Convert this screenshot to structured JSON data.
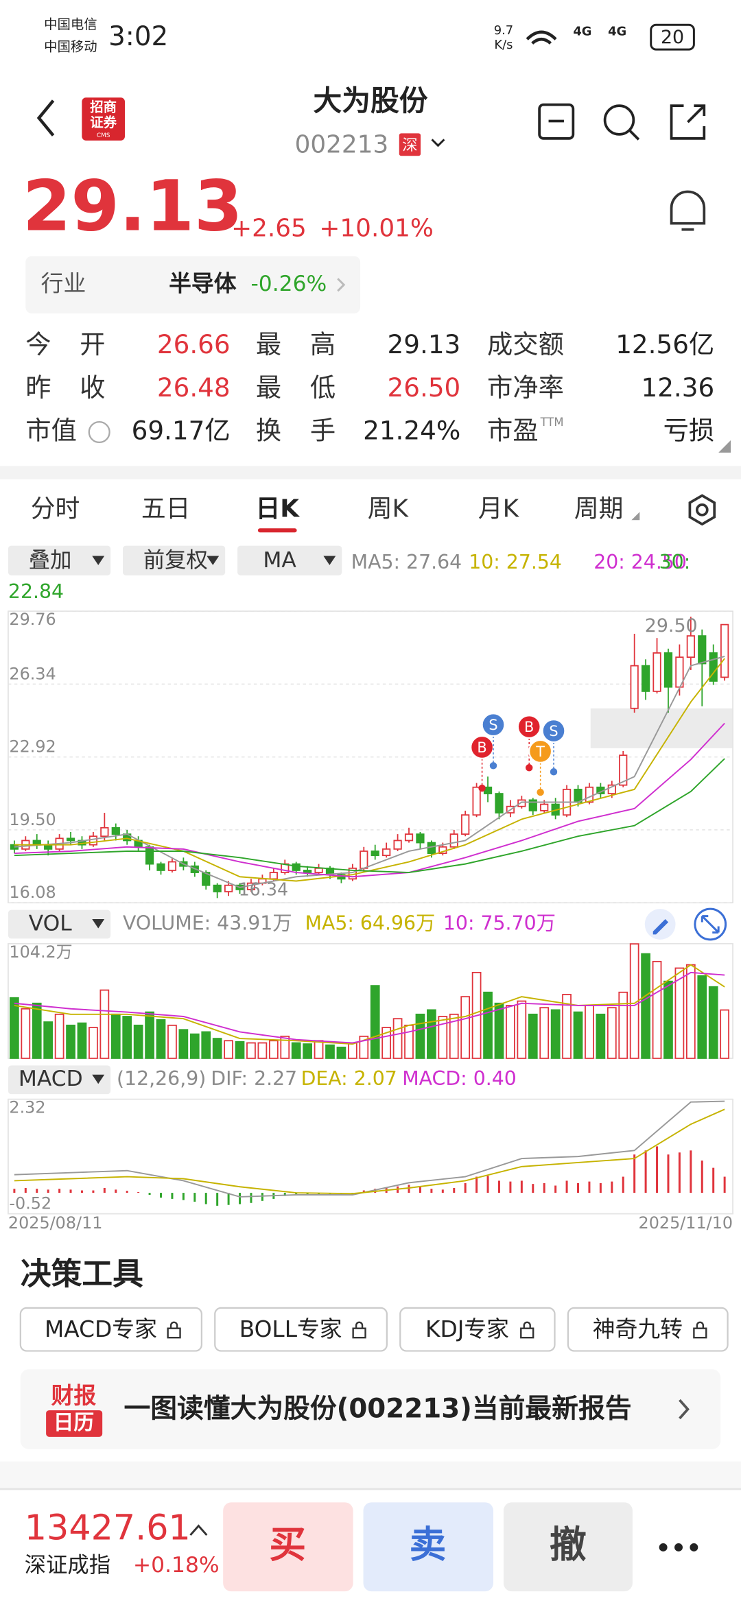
{
  "status": {
    "carrier1": "中国电信",
    "carrier2": "中国移动",
    "time": "3:02",
    "speed": "9.7",
    "speed_unit": "K/s",
    "network": "4G",
    "battery": "20"
  },
  "header": {
    "name": "大为股份",
    "code": "002213",
    "market": "深",
    "logo_top": "招商",
    "logo_bottom": "证券",
    "logo_small": "CMS"
  },
  "quote": {
    "price": "29.13",
    "change": "+2.65",
    "pct": "+10.01%"
  },
  "industry": {
    "label": "行业",
    "name": "半导体",
    "change": "-0.26%"
  },
  "stats": [
    [
      [
        "今 开",
        "26.66"
      ],
      [
        "最 高",
        "29.13"
      ],
      [
        "成交额",
        "12.56亿"
      ]
    ],
    [
      [
        "昨 收",
        "26.48"
      ],
      [
        "最 低",
        "26.50"
      ],
      [
        "市净率",
        "12.36"
      ]
    ],
    [
      [
        "市值",
        "69.17亿"
      ],
      [
        "换 手",
        "21.24%"
      ],
      [
        "市盈",
        "亏损"
      ]
    ]
  ],
  "pe_suffix": "TTM",
  "tabs": [
    "分时",
    "五日",
    "日K",
    "周K",
    "月K",
    "周期"
  ],
  "controls": [
    "叠加",
    "前复权",
    "MA"
  ],
  "ma_legend": [
    "MA5: 27.64",
    "10: 27.54",
    "20: 24.50",
    "30: 22.84"
  ],
  "kline": {
    "ylim": [
      16.08,
      29.76
    ],
    "yticks": [
      29.76,
      26.34,
      22.92,
      {
        "value": 19.5,
        "label": "19.50"
      },
      16.08
    ],
    "high_label": "29.50",
    "low_label": "16.34",
    "candles": [
      [
        18.8,
        18.6,
        19.0,
        18.4
      ],
      [
        18.6,
        19.0,
        19.2,
        18.5
      ],
      [
        19.0,
        18.8,
        19.3,
        18.6
      ],
      [
        18.8,
        18.6,
        19.0,
        18.3
      ],
      [
        18.6,
        19.1,
        19.3,
        18.5
      ],
      [
        19.1,
        19.0,
        19.4,
        18.8
      ],
      [
        19.0,
        18.8,
        19.2,
        18.6
      ],
      [
        18.8,
        19.2,
        19.4,
        18.7
      ],
      [
        19.2,
        19.6,
        20.3,
        19.0
      ],
      [
        19.6,
        19.3,
        19.8,
        19.0
      ],
      [
        19.3,
        19.0,
        19.5,
        18.8
      ],
      [
        19.0,
        18.7,
        19.2,
        18.5
      ],
      [
        18.7,
        17.9,
        18.8,
        17.6
      ],
      [
        17.9,
        17.6,
        18.0,
        17.4
      ],
      [
        17.6,
        18.0,
        18.2,
        17.5
      ],
      [
        18.0,
        17.8,
        18.2,
        17.6
      ],
      [
        17.8,
        17.5,
        18.0,
        17.3
      ],
      [
        17.5,
        16.9,
        17.6,
        16.7
      ],
      [
        16.9,
        16.6,
        17.0,
        16.3
      ],
      [
        16.6,
        16.9,
        17.1,
        16.4
      ],
      [
        16.9,
        16.7,
        17.0,
        16.5
      ],
      [
        16.7,
        17.0,
        17.2,
        16.6
      ],
      [
        17.0,
        17.2,
        17.4,
        16.9
      ],
      [
        17.2,
        17.5,
        17.7,
        17.1
      ],
      [
        17.5,
        17.9,
        18.1,
        17.4
      ],
      [
        17.9,
        17.6,
        18.0,
        17.4
      ],
      [
        17.6,
        17.5,
        17.8,
        17.3
      ],
      [
        17.5,
        17.7,
        17.9,
        17.4
      ],
      [
        17.7,
        17.4,
        17.8,
        17.2
      ],
      [
        17.4,
        17.2,
        17.5,
        17.0
      ],
      [
        17.2,
        17.7,
        17.9,
        17.1
      ],
      [
        17.7,
        18.5,
        18.7,
        17.6
      ],
      [
        18.5,
        18.3,
        18.8,
        18.1
      ],
      [
        18.3,
        18.6,
        18.9,
        18.2
      ],
      [
        18.6,
        19.0,
        19.3,
        18.5
      ],
      [
        19.0,
        19.3,
        19.6,
        18.9
      ],
      [
        19.3,
        18.9,
        19.4,
        18.6
      ],
      [
        18.9,
        18.4,
        19.0,
        18.2
      ],
      [
        18.4,
        18.7,
        18.9,
        18.3
      ],
      [
        18.7,
        19.3,
        19.5,
        18.6
      ],
      [
        19.3,
        20.2,
        20.4,
        19.2
      ],
      [
        20.2,
        21.5,
        21.7,
        20.1
      ],
      [
        21.5,
        21.2,
        22.0,
        20.8
      ],
      [
        21.2,
        20.3,
        21.3,
        20.0
      ],
      [
        20.3,
        20.6,
        20.9,
        20.1
      ],
      [
        20.6,
        20.9,
        21.1,
        20.5
      ],
      [
        20.9,
        20.4,
        21.0,
        20.2
      ],
      [
        20.4,
        20.7,
        20.9,
        20.3
      ],
      [
        20.7,
        20.2,
        21.0,
        20.0
      ],
      [
        20.2,
        21.4,
        21.6,
        20.1
      ],
      [
        21.4,
        20.8,
        21.6,
        20.6
      ],
      [
        20.8,
        21.5,
        21.7,
        20.7
      ],
      [
        21.5,
        21.2,
        21.7,
        21.0
      ],
      [
        21.2,
        21.6,
        21.8,
        21.0
      ],
      [
        21.6,
        23.0,
        23.2,
        21.5
      ],
      [
        25.2,
        27.2,
        28.7,
        25.0
      ],
      [
        27.2,
        26.0,
        27.5,
        25.6
      ],
      [
        26.0,
        27.8,
        28.5,
        25.9
      ],
      [
        27.8,
        26.2,
        28.0,
        25.0
      ],
      [
        26.2,
        27.6,
        28.2,
        25.8
      ],
      [
        27.6,
        28.6,
        29.5,
        27.0
      ],
      [
        28.6,
        27.3,
        28.9,
        25.3
      ],
      [
        27.8,
        26.48,
        28.2,
        26.3
      ],
      [
        26.66,
        29.13,
        29.13,
        26.5
      ]
    ],
    "line_x": [
      0,
      5,
      10,
      15,
      20,
      25,
      30,
      35,
      40,
      45,
      50,
      55,
      60,
      63
    ],
    "ma5": [
      18.7,
      18.9,
      19.3,
      17.9,
      16.8,
      17.3,
      17.5,
      18.5,
      19.0,
      20.8,
      20.8,
      22.0,
      27.2,
      27.64
    ],
    "ma10": [
      18.8,
      18.8,
      19.1,
      18.5,
      17.3,
      17.1,
      17.4,
      18.0,
      18.8,
      20.0,
      20.7,
      21.4,
      25.5,
      27.54
    ],
    "ma20": [
      18.4,
      18.5,
      18.7,
      18.6,
      18.0,
      17.5,
      17.3,
      17.5,
      18.2,
      19.0,
      19.9,
      20.5,
      22.8,
      24.5
    ],
    "ma30": [
      18.3,
      18.4,
      18.5,
      18.5,
      18.2,
      17.8,
      17.6,
      17.5,
      17.9,
      18.5,
      19.2,
      19.7,
      21.3,
      22.84
    ],
    "signals": [
      "B",
      "S",
      "B",
      "T",
      "S"
    ]
  },
  "volume": {
    "label": "VOL",
    "legend": [
      "VOLUME: 43.91万",
      "MA5: 64.96万",
      "10: 75.70万"
    ],
    "ylim": [
      0,
      104.2
    ],
    "yticks": [
      {
        "value": 104.2,
        "label": "104.2万"
      }
    ],
    "values": [
      55,
      45,
      50,
      33,
      40,
      30,
      32,
      28,
      62,
      40,
      38,
      30,
      42,
      35,
      30,
      26,
      22,
      24,
      18,
      16,
      15,
      14,
      14,
      16,
      20,
      14,
      13,
      16,
      12,
      10,
      14,
      20,
      66,
      28,
      36,
      30,
      40,
      44,
      38,
      40,
      56,
      78,
      60,
      50,
      48,
      52,
      40,
      46,
      44,
      58,
      42,
      48,
      40,
      46,
      60,
      104,
      95,
      88,
      70,
      82,
      85,
      75,
      65,
      43.91
    ],
    "ma5": [
      48,
      40,
      40,
      36,
      18,
      16,
      13,
      30,
      38,
      56,
      48,
      50,
      85,
      64.96
    ],
    "ma10": [
      50,
      45,
      42,
      38,
      24,
      17,
      14,
      24,
      36,
      50,
      48,
      48,
      78,
      75.7
    ]
  },
  "macd": {
    "label": "MACD",
    "legend": [
      "(12,26,9)",
      "DIF: 2.27",
      "DEA: 2.07",
      "MACD: 0.40"
    ],
    "ylim": [
      -0.52,
      2.32
    ],
    "yticks": [
      2.32,
      -0.52
    ],
    "hist": [
      0.1,
      0.12,
      0.1,
      0.08,
      0.1,
      0.08,
      0.06,
      0.06,
      0.12,
      0.08,
      0.05,
      0.02,
      -0.05,
      -0.12,
      -0.15,
      -0.18,
      -0.22,
      -0.28,
      -0.32,
      -0.3,
      -0.28,
      -0.25,
      -0.2,
      -0.15,
      -0.08,
      -0.06,
      -0.05,
      -0.04,
      -0.05,
      -0.06,
      -0.02,
      0.06,
      0.1,
      0.12,
      0.16,
      0.2,
      0.16,
      0.1,
      0.08,
      0.12,
      0.24,
      0.4,
      0.42,
      0.3,
      0.28,
      0.3,
      0.22,
      0.24,
      0.18,
      0.3,
      0.24,
      0.28,
      0.24,
      0.28,
      0.4,
      0.95,
      1.05,
      1.15,
      0.95,
      1.0,
      1.05,
      0.8,
      0.62,
      0.4
    ],
    "dif": [
      0.45,
      0.5,
      0.55,
      0.3,
      -0.1,
      -0.05,
      -0.05,
      0.25,
      0.4,
      0.85,
      0.9,
      1.05,
      2.25,
      2.27
    ],
    "dea": [
      0.3,
      0.35,
      0.4,
      0.35,
      0.15,
      0.0,
      -0.02,
      0.12,
      0.3,
      0.65,
      0.75,
      0.85,
      1.7,
      2.07
    ],
    "start_date": "2025/08/11",
    "end_date": "2025/11/10"
  },
  "tools": {
    "title": "决策工具",
    "buttons": [
      "MACD专家",
      "BOLL专家",
      "KDJ专家",
      "神奇九转"
    ]
  },
  "banner": {
    "logo_top": "财报",
    "logo_bottom": "日历",
    "text": "一图读懂大为股份(002213)当前最新报告"
  },
  "footer": {
    "index_value": "13427.61",
    "index_name": "深证成指",
    "index_change": "+0.18%",
    "buy": "买",
    "sell": "卖",
    "cancel": "撤"
  }
}
